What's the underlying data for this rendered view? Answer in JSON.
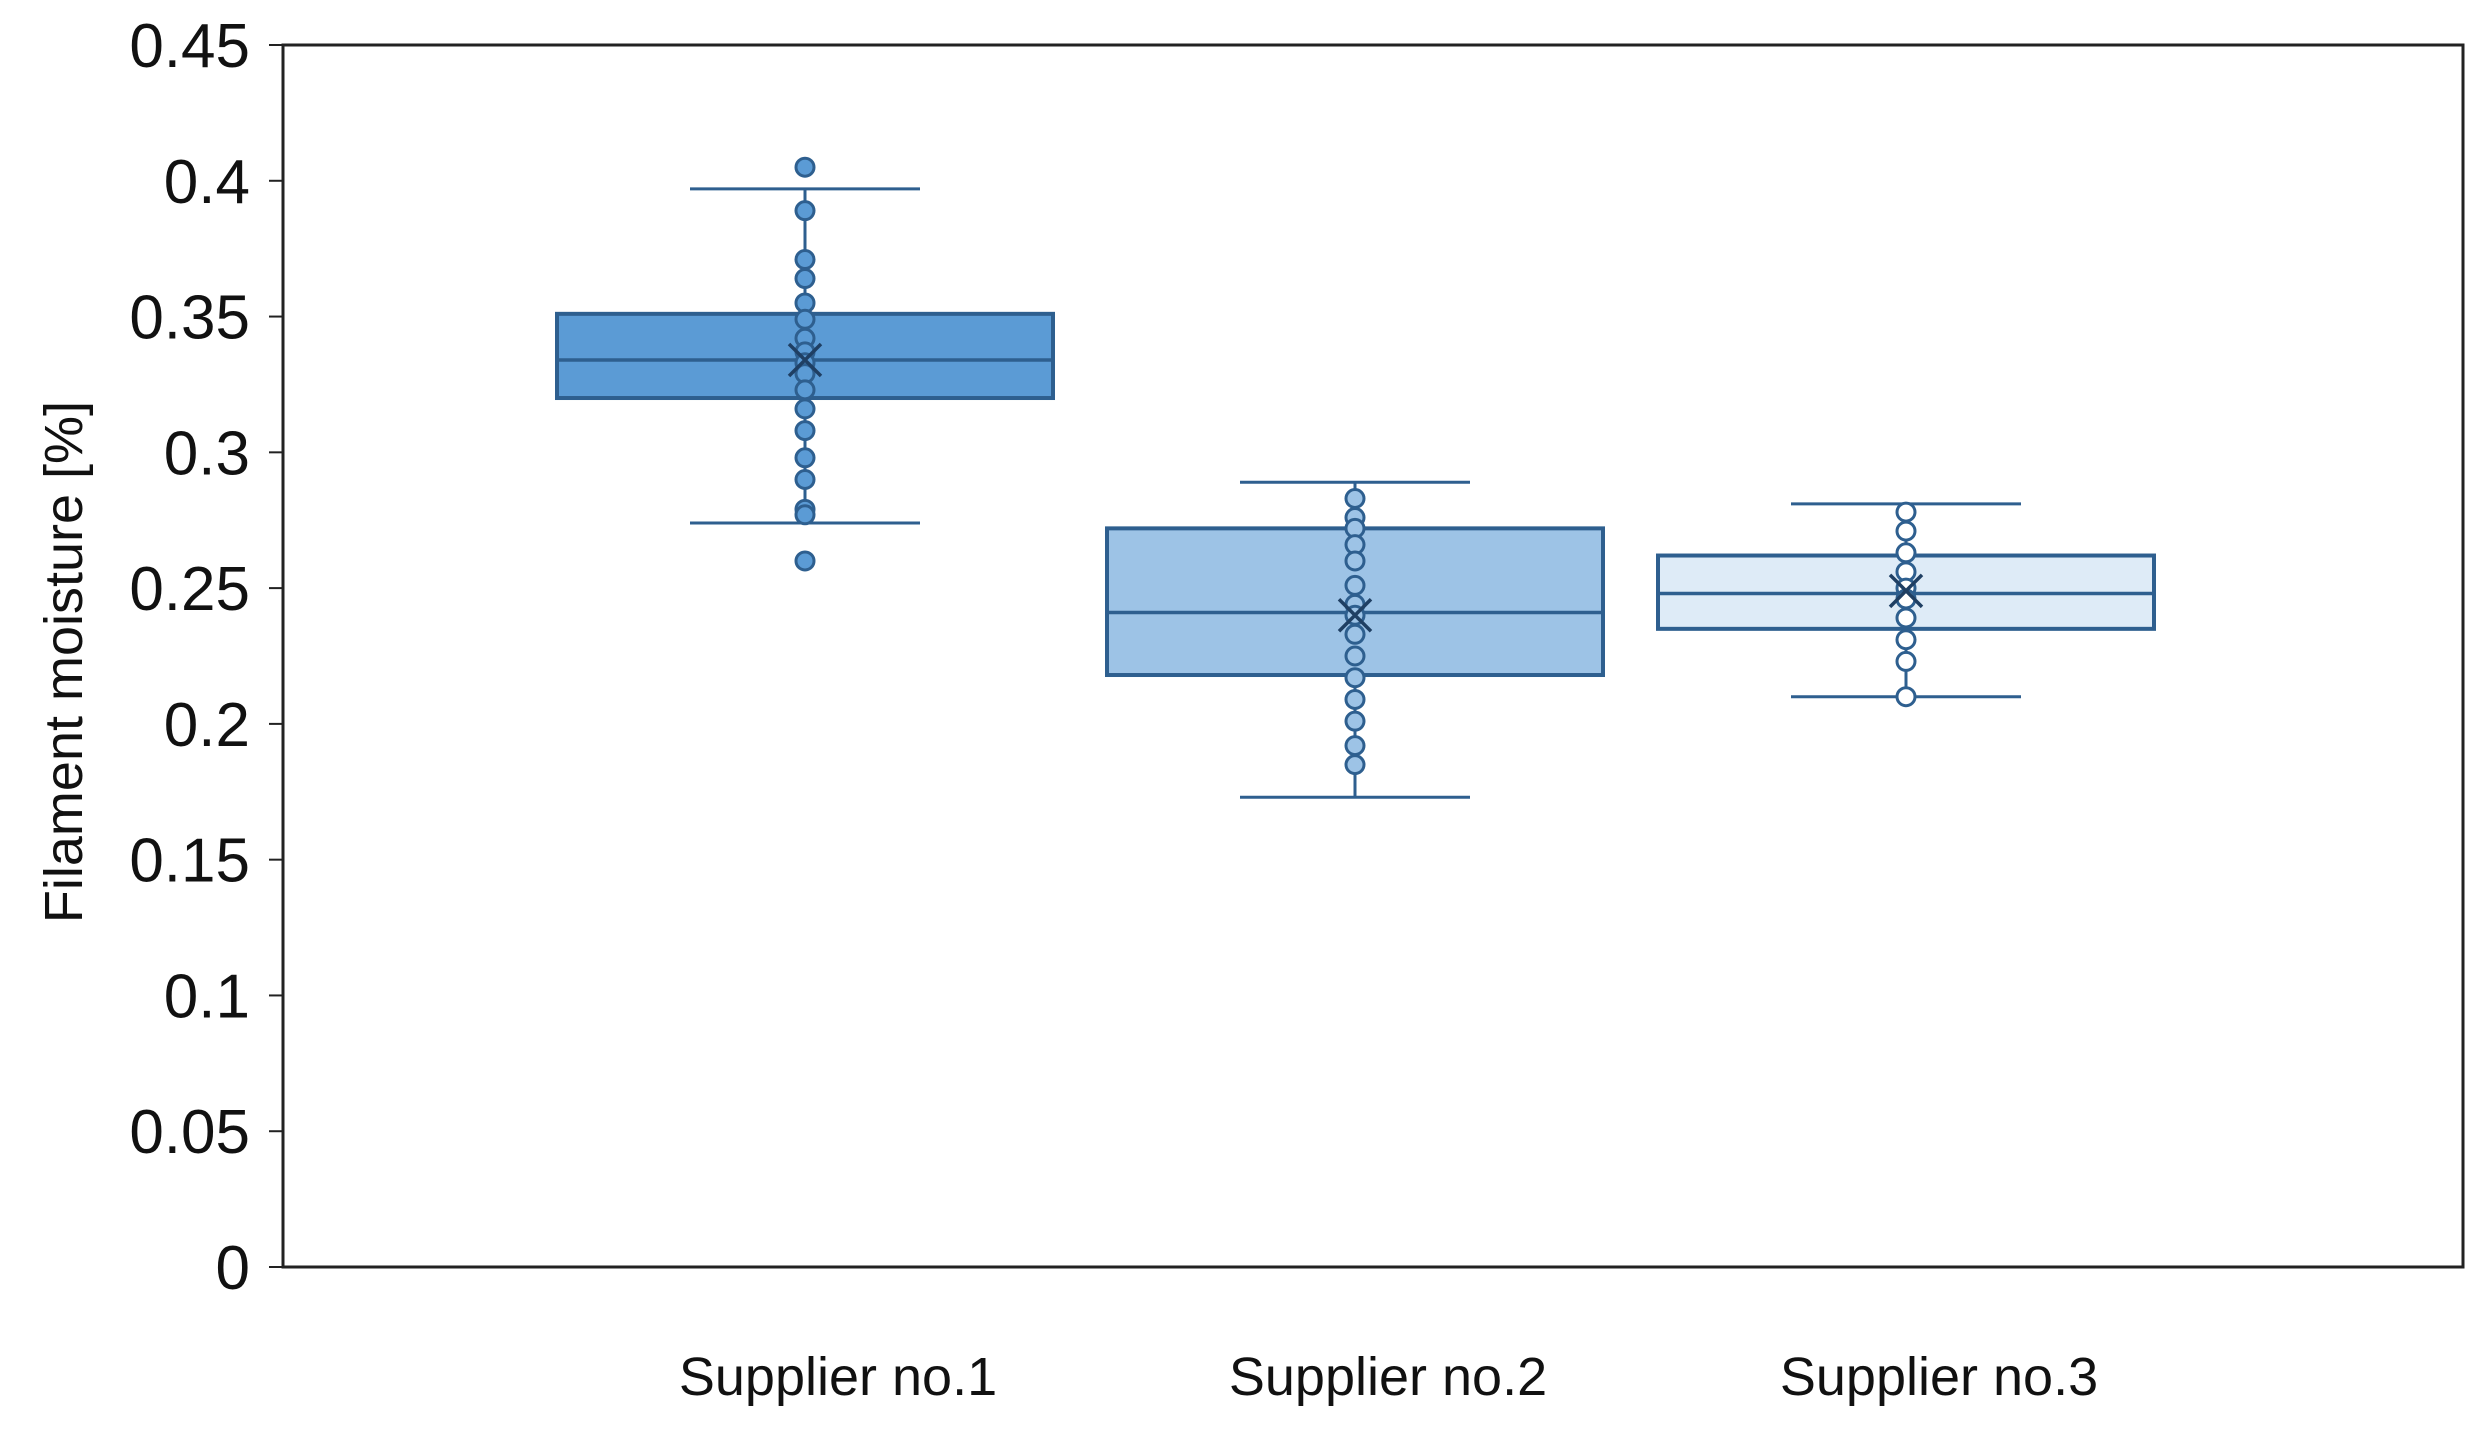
{
  "chart_data": {
    "type": "boxplot",
    "title": "",
    "xlabel": "",
    "ylabel": "Filament moisture  [%]",
    "ylim": [
      0,
      0.45
    ],
    "yticks": [
      "0",
      "0.05",
      "0.1",
      "0.15",
      "0.2",
      "0.25",
      "0.3",
      "0.35",
      "0.4",
      "0.45"
    ],
    "grid": false,
    "categories": [
      "Supplier no.1",
      "Supplier no.2",
      "Supplier no.3"
    ],
    "boxes": [
      {
        "category": "Supplier no.1",
        "whisker_low": 0.274,
        "q1": 0.32,
        "median": 0.334,
        "q3": 0.351,
        "whisker_high": 0.397,
        "mean": 0.334,
        "points": [
          0.405,
          0.389,
          0.371,
          0.364,
          0.355,
          0.349,
          0.342,
          0.337,
          0.333,
          0.329,
          0.323,
          0.316,
          0.308,
          0.298,
          0.29,
          0.279,
          0.277,
          0.26
        ],
        "fill": "#5b9bd5",
        "stroke": "#2e5f8f",
        "point_fill": "#5b9bd5"
      },
      {
        "category": "Supplier no.2",
        "whisker_low": 0.173,
        "q1": 0.218,
        "median": 0.241,
        "q3": 0.272,
        "whisker_high": 0.289,
        "mean": 0.24,
        "points": [
          0.283,
          0.276,
          0.272,
          0.266,
          0.26,
          0.251,
          0.244,
          0.24,
          0.233,
          0.225,
          0.217,
          0.209,
          0.201,
          0.192,
          0.185
        ],
        "fill": "#9dc3e6",
        "stroke": "#2e5f8f",
        "point_fill": "#9dc3e6"
      },
      {
        "category": "Supplier no.3",
        "whisker_low": 0.21,
        "q1": 0.235,
        "median": 0.248,
        "q3": 0.262,
        "whisker_high": 0.281,
        "mean": 0.249,
        "points": [
          0.278,
          0.271,
          0.263,
          0.256,
          0.25,
          0.246,
          0.239,
          0.231,
          0.223,
          0.21
        ],
        "fill": "#deebf7",
        "stroke": "#2e5f8f",
        "point_fill": "#ffffff"
      }
    ]
  }
}
